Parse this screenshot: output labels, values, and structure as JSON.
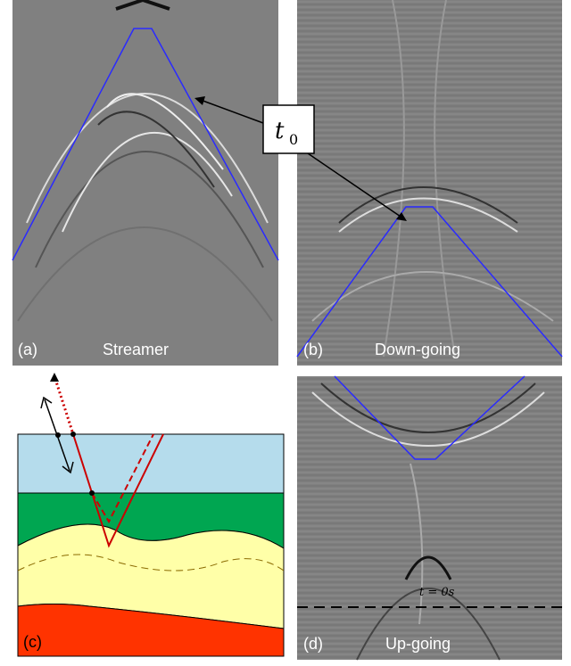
{
  "panels": [
    {
      "label": "(a)",
      "title": "Streamer"
    },
    {
      "label": "(b)",
      "title": "Down-going"
    },
    {
      "label": "(c)"
    },
    {
      "label": "(d)",
      "title": "Up-going"
    }
  ],
  "annotation": {
    "symbol": "t",
    "subscript": "0"
  },
  "zero_time": "t = 0s"
}
